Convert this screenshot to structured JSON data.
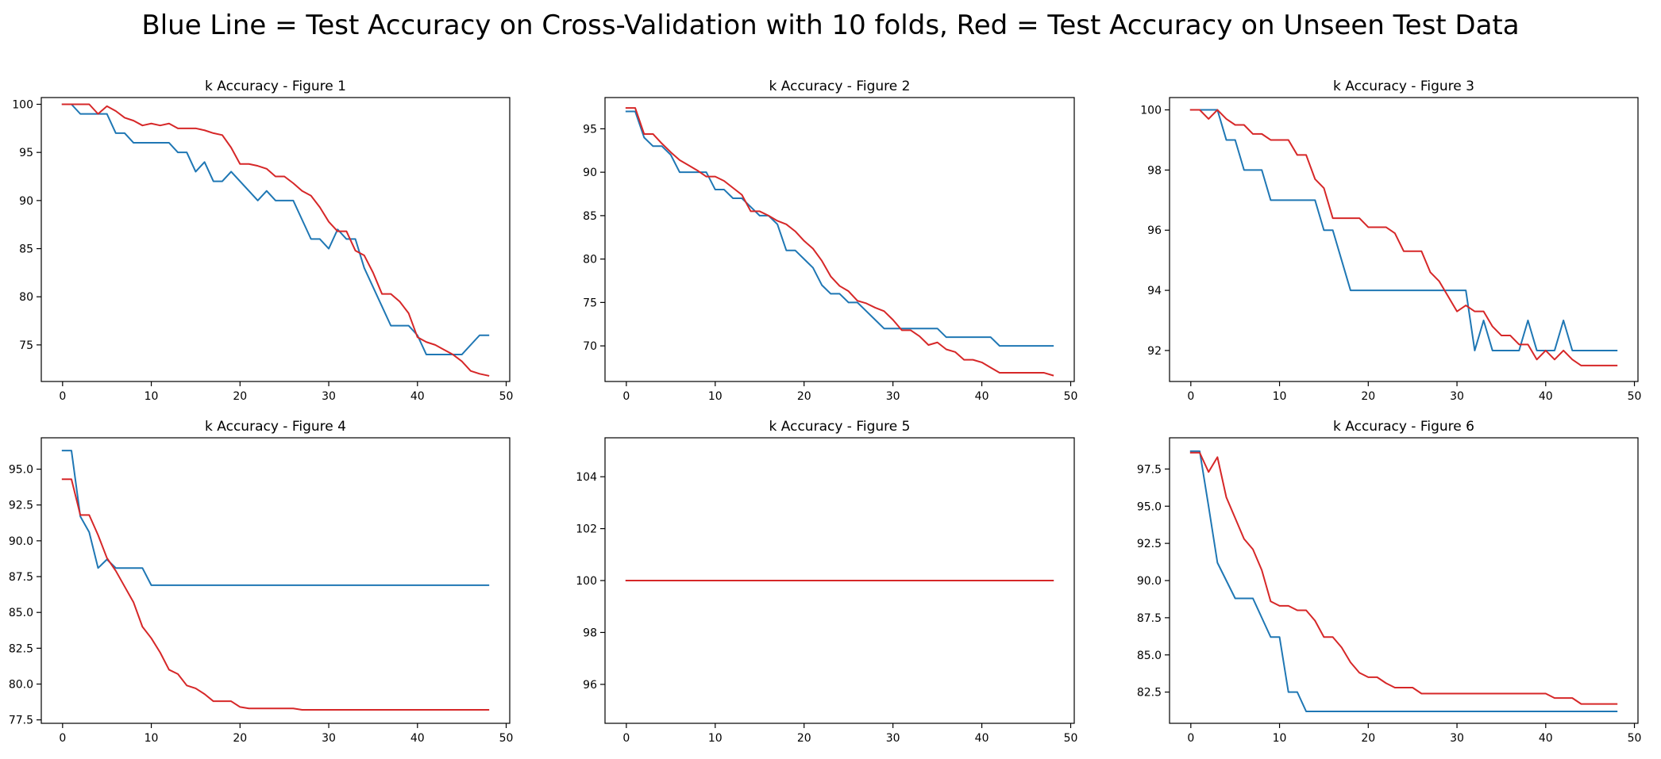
{
  "title": "Blue Line = Test Accuracy on Cross-Validation with 10 folds, Red = Test Accuracy on Unseen Test Data",
  "colors": {
    "blue": "#1f77b4",
    "red": "#d62728"
  },
  "chart_data": [
    {
      "type": "line",
      "title": "k Accuracy  - Figure 1",
      "xlim": [
        -2.4,
        50.4
      ],
      "ylim": [
        71.2,
        100.7
      ],
      "xticks": [
        0,
        10,
        20,
        30,
        40,
        50
      ],
      "yticks": [
        75,
        80,
        85,
        90,
        95,
        100
      ],
      "ytick_labels": [
        "75",
        "80",
        "85",
        "90",
        "95",
        "100"
      ],
      "x": [
        0,
        1,
        2,
        3,
        4,
        5,
        6,
        7,
        8,
        9,
        10,
        11,
        12,
        13,
        14,
        15,
        16,
        17,
        18,
        19,
        20,
        21,
        22,
        23,
        24,
        25,
        26,
        27,
        28,
        29,
        30,
        31,
        32,
        33,
        34,
        35,
        36,
        37,
        38,
        39,
        40,
        41,
        42,
        43,
        44,
        45,
        46,
        47,
        48
      ],
      "series": [
        {
          "color": "blue",
          "values": [
            100,
            100,
            99,
            99,
            99,
            99,
            97,
            97,
            96,
            96,
            96,
            96,
            96,
            95,
            95,
            93,
            94,
            92,
            92,
            93,
            92,
            91,
            90,
            91,
            90,
            90,
            90,
            88,
            86,
            86,
            85,
            87,
            86,
            86,
            83,
            81,
            79,
            77,
            77,
            77,
            76,
            74,
            74,
            74,
            74,
            74,
            75,
            76,
            76
          ]
        },
        {
          "color": "red",
          "values": [
            100,
            100,
            100,
            100,
            99,
            99.8,
            99.3,
            98.6,
            98.3,
            97.8,
            98,
            97.8,
            98,
            97.5,
            97.5,
            97.5,
            97.3,
            97,
            96.8,
            95.5,
            93.8,
            93.8,
            93.6,
            93.3,
            92.5,
            92.5,
            91.8,
            91,
            90.5,
            89.3,
            87.8,
            86.8,
            86.8,
            84.8,
            84.3,
            82.5,
            80.3,
            80.3,
            79.5,
            78.3,
            75.8,
            75.3,
            75,
            74.5,
            74,
            73.3,
            72.3,
            72,
            71.8
          ]
        }
      ]
    },
    {
      "type": "line",
      "title": "k Accuracy  - Figure 2",
      "xlim": [
        -2.4,
        50.4
      ],
      "ylim": [
        65.9,
        98.6
      ],
      "xticks": [
        0,
        10,
        20,
        30,
        40,
        50
      ],
      "yticks": [
        70,
        75,
        80,
        85,
        90,
        95
      ],
      "ytick_labels": [
        "70",
        "75",
        "80",
        "85",
        "90",
        "95"
      ],
      "x": [
        0,
        1,
        2,
        3,
        4,
        5,
        6,
        7,
        8,
        9,
        10,
        11,
        12,
        13,
        14,
        15,
        16,
        17,
        18,
        19,
        20,
        21,
        22,
        23,
        24,
        25,
        26,
        27,
        28,
        29,
        30,
        31,
        32,
        33,
        34,
        35,
        36,
        37,
        38,
        39,
        40,
        41,
        42,
        43,
        44,
        45,
        46,
        47,
        48
      ],
      "series": [
        {
          "color": "blue",
          "values": [
            97,
            97,
            94,
            93,
            93,
            92,
            90,
            90,
            90,
            90,
            88,
            88,
            87,
            87,
            86,
            85,
            85,
            84,
            81,
            81,
            80,
            79,
            77,
            76,
            76,
            75,
            75,
            74,
            73,
            72,
            72,
            72,
            72,
            72,
            72,
            72,
            71,
            71,
            71,
            71,
            71,
            71,
            70,
            70,
            70,
            70,
            70,
            70,
            70
          ]
        },
        {
          "color": "red",
          "values": [
            97.4,
            97.4,
            94.4,
            94.4,
            93.3,
            92.3,
            91.4,
            90.8,
            90.2,
            89.5,
            89.5,
            89,
            88.2,
            87.4,
            85.5,
            85.5,
            85,
            84.4,
            84,
            83.2,
            82.1,
            81.2,
            79.8,
            78,
            76.9,
            76.3,
            75.2,
            74.9,
            74.4,
            74,
            73,
            71.8,
            71.8,
            71.1,
            70.1,
            70.4,
            69.6,
            69.3,
            68.4,
            68.4,
            68.1,
            67.5,
            66.9,
            66.9,
            66.9,
            66.9,
            66.9,
            66.9,
            66.6
          ]
        }
      ]
    },
    {
      "type": "line",
      "title": "k Accuracy  - Figure 3",
      "xlim": [
        -2.4,
        50.4
      ],
      "ylim": [
        90.97,
        100.41
      ],
      "xticks": [
        0,
        10,
        20,
        30,
        40,
        50
      ],
      "yticks": [
        92,
        94,
        96,
        98,
        100
      ],
      "ytick_labels": [
        "92",
        "94",
        "96",
        "98",
        "100"
      ],
      "x": [
        0,
        1,
        2,
        3,
        4,
        5,
        6,
        7,
        8,
        9,
        10,
        11,
        12,
        13,
        14,
        15,
        16,
        17,
        18,
        19,
        20,
        21,
        22,
        23,
        24,
        25,
        26,
        27,
        28,
        29,
        30,
        31,
        32,
        33,
        34,
        35,
        36,
        37,
        38,
        39,
        40,
        41,
        42,
        43,
        44,
        45,
        46,
        47,
        48
      ],
      "series": [
        {
          "color": "blue",
          "values": [
            100,
            100,
            100,
            100,
            99,
            99,
            98,
            98,
            98,
            97,
            97,
            97,
            97,
            97,
            97,
            96,
            96,
            95,
            94,
            94,
            94,
            94,
            94,
            94,
            94,
            94,
            94,
            94,
            94,
            94,
            94,
            94,
            92,
            93,
            92,
            92,
            92,
            92,
            93,
            92,
            92,
            92,
            93,
            92,
            92,
            92,
            92,
            92,
            92
          ]
        },
        {
          "color": "red",
          "values": [
            100,
            100,
            99.7,
            100,
            99.7,
            99.5,
            99.5,
            99.2,
            99.2,
            99,
            99,
            99,
            98.5,
            98.5,
            97.7,
            97.4,
            96.4,
            96.4,
            96.4,
            96.4,
            96.1,
            96.1,
            96.1,
            95.9,
            95.3,
            95.3,
            95.3,
            94.6,
            94.3,
            93.8,
            93.3,
            93.5,
            93.3,
            93.3,
            92.8,
            92.5,
            92.5,
            92.2,
            92.2,
            91.7,
            92,
            91.7,
            92,
            91.7,
            91.5,
            91.5,
            91.5,
            91.5,
            91.5
          ]
        }
      ]
    },
    {
      "type": "line",
      "title": "k Accuracy  - Figure 4",
      "xlim": [
        -2.4,
        50.4
      ],
      "ylim": [
        77.26,
        97.19
      ],
      "xticks": [
        0,
        10,
        20,
        30,
        40,
        50
      ],
      "yticks": [
        77.5,
        80.0,
        82.5,
        85.0,
        87.5,
        90.0,
        92.5,
        95.0
      ],
      "ytick_labels": [
        "77.5",
        "80.0",
        "82.5",
        "85.0",
        "87.5",
        "90.0",
        "92.5",
        "95.0"
      ],
      "x": [
        0,
        1,
        2,
        3,
        4,
        5,
        6,
        7,
        8,
        9,
        10,
        11,
        12,
        13,
        14,
        15,
        16,
        17,
        18,
        19,
        20,
        21,
        22,
        23,
        24,
        25,
        26,
        27,
        28,
        29,
        30,
        31,
        32,
        33,
        34,
        35,
        36,
        37,
        38,
        39,
        40,
        41,
        42,
        43,
        44,
        45,
        46,
        47,
        48
      ],
      "series": [
        {
          "color": "blue",
          "values": [
            96.3,
            96.3,
            91.7,
            90.6,
            88.1,
            88.7,
            88.1,
            88.1,
            88.1,
            88.1,
            86.9,
            86.9,
            86.9,
            86.9,
            86.9,
            86.9,
            86.9,
            86.9,
            86.9,
            86.9,
            86.9,
            86.9,
            86.9,
            86.9,
            86.9,
            86.9,
            86.9,
            86.9,
            86.9,
            86.9,
            86.9,
            86.9,
            86.9,
            86.9,
            86.9,
            86.9,
            86.9,
            86.9,
            86.9,
            86.9,
            86.9,
            86.9,
            86.9,
            86.9,
            86.9,
            86.9,
            86.9,
            86.9,
            86.9
          ]
        },
        {
          "color": "red",
          "values": [
            94.3,
            94.3,
            91.8,
            91.8,
            90.4,
            88.8,
            87.9,
            86.8,
            85.7,
            84,
            83.2,
            82.2,
            81,
            80.7,
            79.9,
            79.7,
            79.3,
            78.8,
            78.8,
            78.8,
            78.4,
            78.3,
            78.3,
            78.3,
            78.3,
            78.3,
            78.3,
            78.2,
            78.2,
            78.2,
            78.2,
            78.2,
            78.2,
            78.2,
            78.2,
            78.2,
            78.2,
            78.2,
            78.2,
            78.2,
            78.2,
            78.2,
            78.2,
            78.2,
            78.2,
            78.2,
            78.2,
            78.2,
            78.2
          ]
        }
      ]
    },
    {
      "type": "line",
      "title": "k Accuracy  - Figure 5",
      "xlim": [
        -2.4,
        50.4
      ],
      "ylim": [
        94.5,
        105.5
      ],
      "xticks": [
        0,
        10,
        20,
        30,
        40,
        50
      ],
      "yticks": [
        96,
        98,
        100,
        102,
        104
      ],
      "ytick_labels": [
        "96",
        "98",
        "100",
        "102",
        "104"
      ],
      "x": [
        0,
        1,
        2,
        3,
        4,
        5,
        6,
        7,
        8,
        9,
        10,
        11,
        12,
        13,
        14,
        15,
        16,
        17,
        18,
        19,
        20,
        21,
        22,
        23,
        24,
        25,
        26,
        27,
        28,
        29,
        30,
        31,
        32,
        33,
        34,
        35,
        36,
        37,
        38,
        39,
        40,
        41,
        42,
        43,
        44,
        45,
        46,
        47,
        48
      ],
      "series": [
        {
          "color": "blue",
          "values": [
            100,
            100,
            100,
            100,
            100,
            100,
            100,
            100,
            100,
            100,
            100,
            100,
            100,
            100,
            100,
            100,
            100,
            100,
            100,
            100,
            100,
            100,
            100,
            100,
            100,
            100,
            100,
            100,
            100,
            100,
            100,
            100,
            100,
            100,
            100,
            100,
            100,
            100,
            100,
            100,
            100,
            100,
            100,
            100,
            100,
            100,
            100,
            100,
            100
          ]
        },
        {
          "color": "red",
          "values": [
            100,
            100,
            100,
            100,
            100,
            100,
            100,
            100,
            100,
            100,
            100,
            100,
            100,
            100,
            100,
            100,
            100,
            100,
            100,
            100,
            100,
            100,
            100,
            100,
            100,
            100,
            100,
            100,
            100,
            100,
            100,
            100,
            100,
            100,
            100,
            100,
            100,
            100,
            100,
            100,
            100,
            100,
            100,
            100,
            100,
            100,
            100,
            100,
            100
          ]
        }
      ]
    },
    {
      "type": "line",
      "title": "k Accuracy  - Figure 6",
      "xlim": [
        -2.4,
        50.4
      ],
      "ylim": [
        80.4,
        99.6
      ],
      "xticks": [
        0,
        10,
        20,
        30,
        40,
        50
      ],
      "yticks": [
        82.5,
        85.0,
        87.5,
        90.0,
        92.5,
        95.0,
        97.5
      ],
      "ytick_labels": [
        "82.5",
        "85.0",
        "87.5",
        "90.0",
        "92.5",
        "95.0",
        "97.5"
      ],
      "x": [
        0,
        1,
        2,
        3,
        4,
        5,
        6,
        7,
        8,
        9,
        10,
        11,
        12,
        13,
        14,
        15,
        16,
        17,
        18,
        19,
        20,
        21,
        22,
        23,
        24,
        25,
        26,
        27,
        28,
        29,
        30,
        31,
        32,
        33,
        34,
        35,
        36,
        37,
        38,
        39,
        40,
        41,
        42,
        43,
        44,
        45,
        46,
        47,
        48
      ],
      "series": [
        {
          "color": "blue",
          "values": [
            98.7,
            98.7,
            95,
            91.2,
            90,
            88.8,
            88.8,
            88.8,
            87.5,
            86.2,
            86.2,
            82.5,
            82.5,
            81.2,
            81.2,
            81.2,
            81.2,
            81.2,
            81.2,
            81.2,
            81.2,
            81.2,
            81.2,
            81.2,
            81.2,
            81.2,
            81.2,
            81.2,
            81.2,
            81.2,
            81.2,
            81.2,
            81.2,
            81.2,
            81.2,
            81.2,
            81.2,
            81.2,
            81.2,
            81.2,
            81.2,
            81.2,
            81.2,
            81.2,
            81.2,
            81.2,
            81.2,
            81.2,
            81.2
          ]
        },
        {
          "color": "red",
          "values": [
            98.6,
            98.6,
            97.3,
            98.3,
            95.6,
            94.2,
            92.8,
            92.1,
            90.7,
            88.6,
            88.3,
            88.3,
            88,
            88,
            87.3,
            86.2,
            86.2,
            85.5,
            84.5,
            83.8,
            83.5,
            83.5,
            83.1,
            82.8,
            82.8,
            82.8,
            82.4,
            82.4,
            82.4,
            82.4,
            82.4,
            82.4,
            82.4,
            82.4,
            82.4,
            82.4,
            82.4,
            82.4,
            82.4,
            82.4,
            82.4,
            82.1,
            82.1,
            82.1,
            81.7,
            81.7,
            81.7,
            81.7,
            81.7
          ]
        }
      ]
    }
  ]
}
